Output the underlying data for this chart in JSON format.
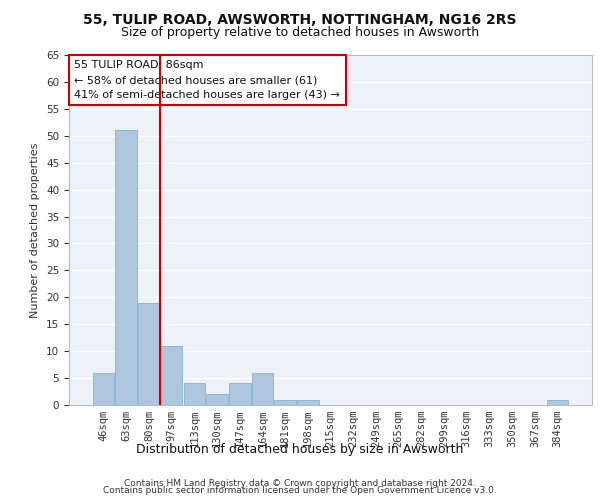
{
  "title_line1": "55, TULIP ROAD, AWSWORTH, NOTTINGHAM, NG16 2RS",
  "title_line2": "Size of property relative to detached houses in Awsworth",
  "xlabel": "Distribution of detached houses by size in Awsworth",
  "ylabel": "Number of detached properties",
  "categories": [
    "46sqm",
    "63sqm",
    "80sqm",
    "97sqm",
    "113sqm",
    "130sqm",
    "147sqm",
    "164sqm",
    "181sqm",
    "198sqm",
    "215sqm",
    "232sqm",
    "249sqm",
    "265sqm",
    "282sqm",
    "299sqm",
    "316sqm",
    "333sqm",
    "350sqm",
    "367sqm",
    "384sqm"
  ],
  "values": [
    6,
    51,
    19,
    11,
    4,
    2,
    4,
    6,
    1,
    1,
    0,
    0,
    0,
    0,
    0,
    0,
    0,
    0,
    0,
    0,
    1
  ],
  "bar_color": "#aec6de",
  "bar_edge_color": "#7aaac8",
  "vline_x_index": 2,
  "vline_color": "#cc0000",
  "annotation_text": "55 TULIP ROAD: 86sqm\n← 58% of detached houses are smaller (61)\n41% of semi-detached houses are larger (43) →",
  "annotation_box_color": "#ffffff",
  "annotation_box_edge": "#cc0000",
  "ylim": [
    0,
    65
  ],
  "yticks": [
    0,
    5,
    10,
    15,
    20,
    25,
    30,
    35,
    40,
    45,
    50,
    55,
    60,
    65
  ],
  "footnote_line1": "Contains HM Land Registry data © Crown copyright and database right 2024.",
  "footnote_line2": "Contains public sector information licensed under the Open Government Licence v3.0.",
  "bg_color": "#edf2f9",
  "grid_color": "#ffffff",
  "title_fontsize": 10,
  "subtitle_fontsize": 9,
  "axis_label_fontsize": 8,
  "tick_fontsize": 7.5,
  "annotation_fontsize": 8,
  "footnote_fontsize": 6.5
}
